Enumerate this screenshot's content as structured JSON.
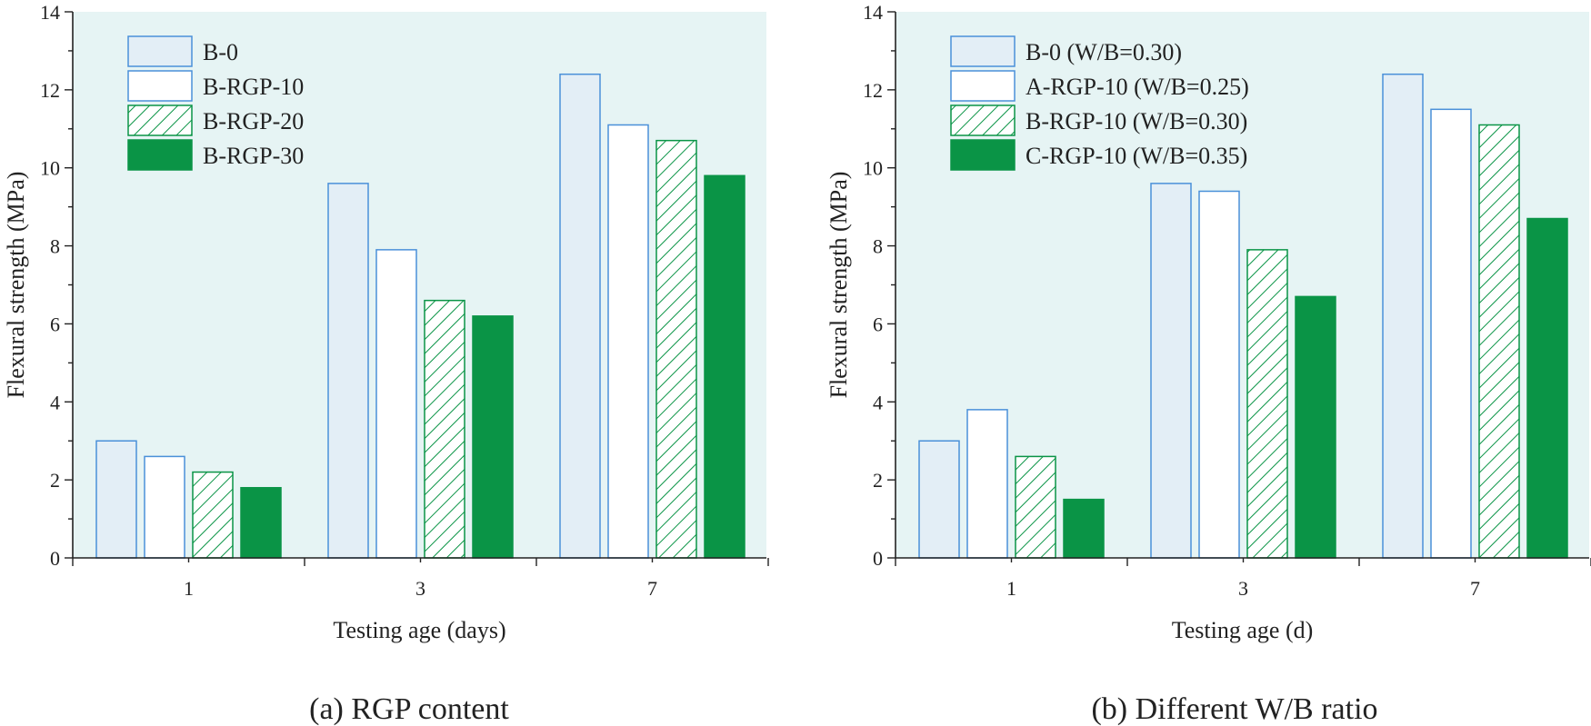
{
  "colors": {
    "plot_background": "#e6f4f4",
    "blue_outline": "#4a90d9",
    "light_blue_fill": "#e3eef6",
    "green": "#0a9446",
    "axis": "#222222"
  },
  "chart_data": [
    {
      "type": "bar",
      "caption": "(a) RGP content",
      "xlabel": "Testing age (days)",
      "ylabel": "Flexural strength (MPa)",
      "ylim": [
        0,
        14
      ],
      "yticks": [
        0,
        2,
        4,
        6,
        8,
        10,
        12,
        14
      ],
      "categories": [
        "1",
        "3",
        "7"
      ],
      "grid": false,
      "legend_position": "top-left",
      "series": [
        {
          "name": "B-0",
          "style": "light-blue-filled",
          "values": [
            3.0,
            9.6,
            12.4
          ]
        },
        {
          "name": "B-RGP-10",
          "style": "blue-outline",
          "values": [
            2.6,
            7.9,
            11.1
          ]
        },
        {
          "name": "B-RGP-20",
          "style": "green-hatched",
          "values": [
            2.2,
            6.6,
            10.7
          ]
        },
        {
          "name": "B-RGP-30",
          "style": "green-solid",
          "values": [
            1.8,
            6.2,
            9.8
          ]
        }
      ]
    },
    {
      "type": "bar",
      "caption": "(b) Different W/B ratio",
      "xlabel": "Testing age (d)",
      "ylabel": "Flexural strength (MPa)",
      "ylim": [
        0,
        14
      ],
      "yticks": [
        0,
        2,
        4,
        6,
        8,
        10,
        12,
        14
      ],
      "categories": [
        "1",
        "3",
        "7"
      ],
      "grid": false,
      "legend_position": "top-left",
      "series": [
        {
          "name": "B-0 (W/B=0.30)",
          "style": "light-blue-filled",
          "values": [
            3.0,
            9.6,
            12.4
          ]
        },
        {
          "name": "A-RGP-10 (W/B=0.25)",
          "style": "blue-outline",
          "values": [
            3.8,
            9.4,
            11.5
          ]
        },
        {
          "name": "B-RGP-10 (W/B=0.30)",
          "style": "green-hatched",
          "values": [
            2.6,
            7.9,
            11.1
          ]
        },
        {
          "name": "C-RGP-10 (W/B=0.35)",
          "style": "green-solid",
          "values": [
            1.5,
            6.7,
            8.7
          ]
        }
      ]
    }
  ]
}
